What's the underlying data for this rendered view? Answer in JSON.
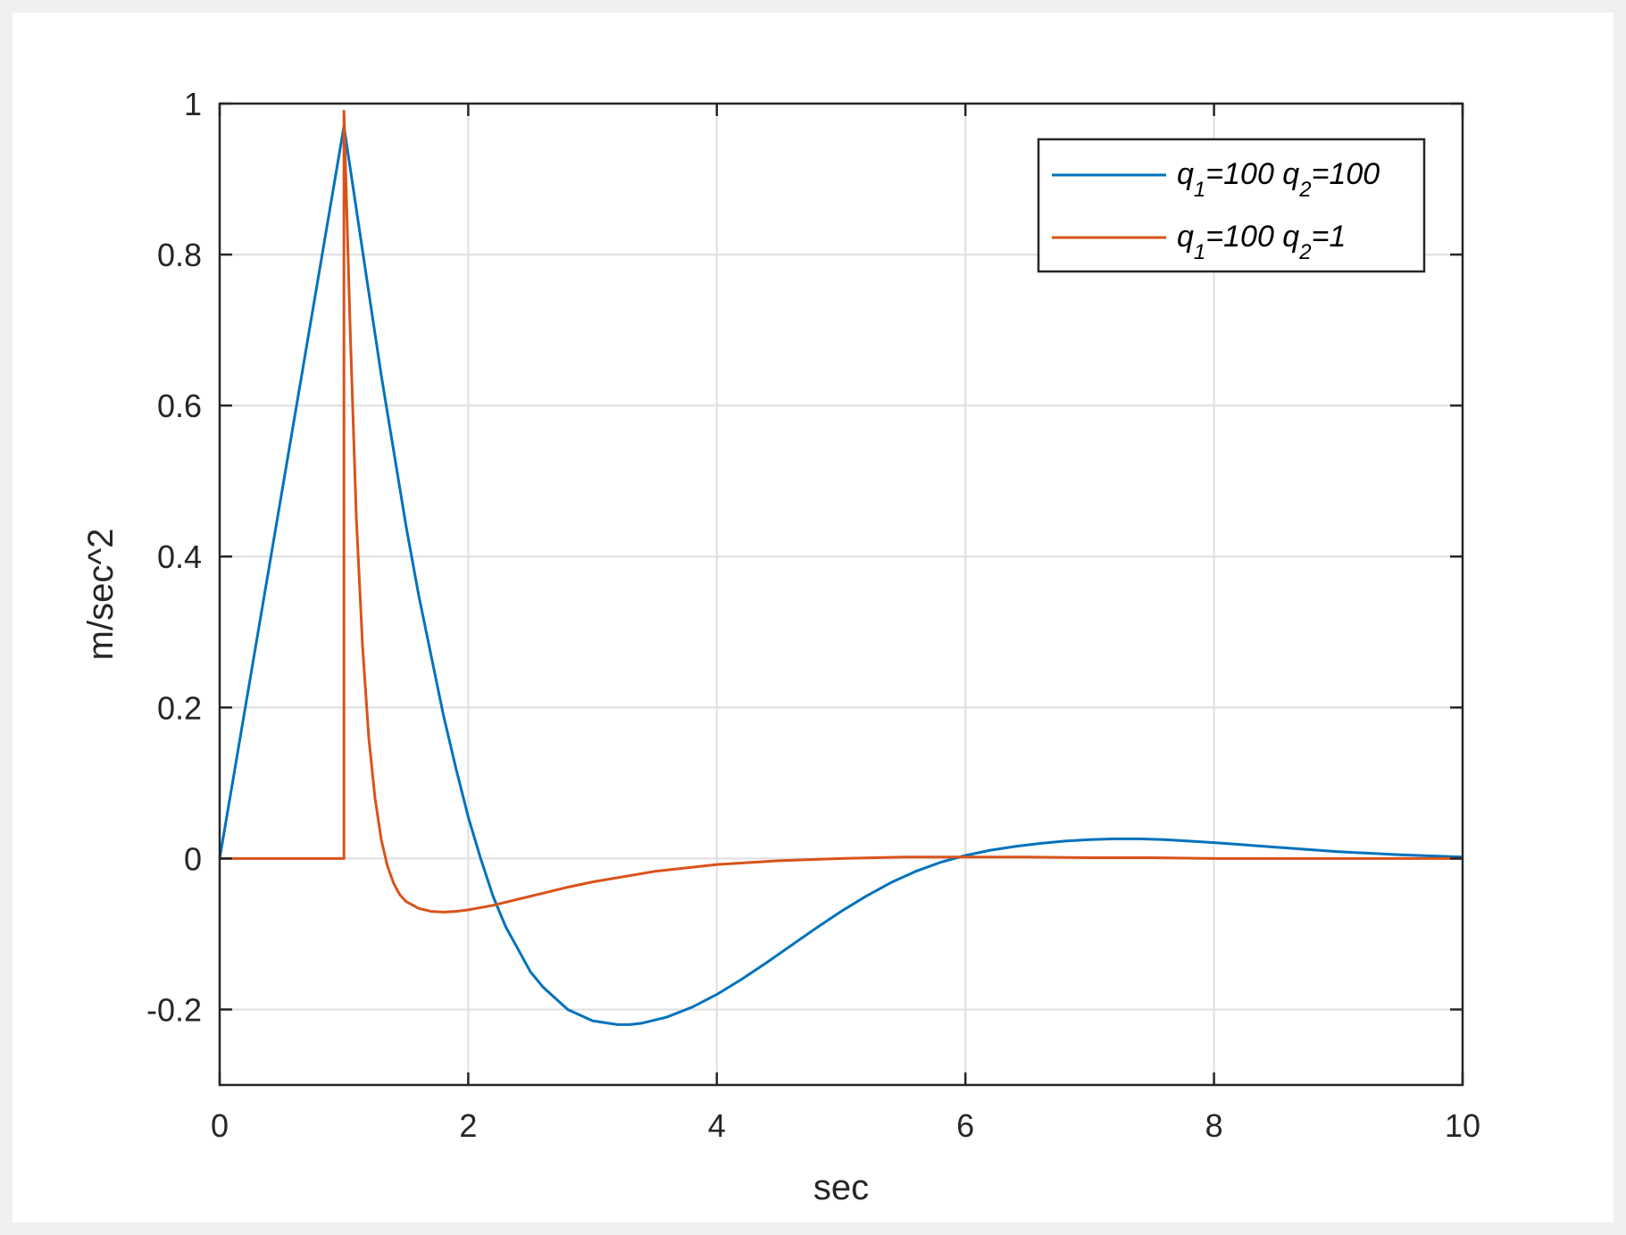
{
  "chart_data": {
    "type": "line",
    "xlabel": "sec",
    "ylabel": "m/sec^2",
    "xlim": [
      0,
      10
    ],
    "ylim": [
      -0.3,
      1
    ],
    "xticks": [
      0,
      2,
      4,
      6,
      8,
      10
    ],
    "yticks": [
      -0.2,
      0,
      0.2,
      0.4,
      0.6,
      0.8,
      1
    ],
    "xtick_labels": [
      "0",
      "2",
      "4",
      "6",
      "8",
      "10"
    ],
    "ytick_labels": [
      "-0.2",
      "0",
      "0.2",
      "0.4",
      "0.6",
      "0.8",
      "1"
    ],
    "grid": true,
    "legend_position": "top-right",
    "series": [
      {
        "name": "q1=100 q2=100",
        "label": {
          "q": "q",
          "s1": "1",
          "mid": "=100 q",
          "s2": "2",
          "end": "=100"
        },
        "color": "#0072BD",
        "x": [
          0,
          1,
          1.1,
          1.2,
          1.3,
          1.4,
          1.5,
          1.6,
          1.7,
          1.8,
          1.9,
          2.0,
          2.1,
          2.2,
          2.3,
          2.4,
          2.5,
          2.6,
          2.8,
          3.0,
          3.2,
          3.3,
          3.4,
          3.6,
          3.8,
          4.0,
          4.2,
          4.4,
          4.6,
          4.8,
          5.0,
          5.2,
          5.4,
          5.6,
          5.8,
          6.0,
          6.2,
          6.4,
          6.6,
          6.8,
          7.0,
          7.2,
          7.4,
          7.6,
          7.8,
          8.0,
          8.5,
          9.0,
          9.5,
          10.0
        ],
        "y": [
          0,
          0.97,
          0.86,
          0.75,
          0.64,
          0.54,
          0.44,
          0.35,
          0.27,
          0.19,
          0.12,
          0.055,
          0.0,
          -0.05,
          -0.09,
          -0.12,
          -0.15,
          -0.17,
          -0.2,
          -0.215,
          -0.22,
          -0.22,
          -0.218,
          -0.21,
          -0.197,
          -0.18,
          -0.16,
          -0.138,
          -0.115,
          -0.092,
          -0.07,
          -0.05,
          -0.032,
          -0.017,
          -0.005,
          0.004,
          0.011,
          0.016,
          0.02,
          0.023,
          0.025,
          0.026,
          0.026,
          0.025,
          0.023,
          0.021,
          0.015,
          0.009,
          0.005,
          0.002
        ]
      },
      {
        "name": "q1=100 q2=1",
        "label": {
          "q": "q",
          "s1": "1",
          "mid": "=100 q",
          "s2": "2",
          "end": "=1"
        },
        "color": "#D95319",
        "x": [
          0,
          1.0,
          1.0,
          1.05,
          1.1,
          1.15,
          1.2,
          1.25,
          1.3,
          1.35,
          1.4,
          1.45,
          1.5,
          1.6,
          1.7,
          1.8,
          1.9,
          2.0,
          2.2,
          2.4,
          2.6,
          2.8,
          3.0,
          3.5,
          4.0,
          4.5,
          5.0,
          5.5,
          6.0,
          6.5,
          7.0,
          7.5,
          8.0,
          9.0,
          10.0
        ],
        "y": [
          0,
          0,
          0.99,
          0.7,
          0.45,
          0.28,
          0.16,
          0.08,
          0.025,
          -0.01,
          -0.033,
          -0.048,
          -0.057,
          -0.066,
          -0.07,
          -0.071,
          -0.07,
          -0.068,
          -0.062,
          -0.054,
          -0.046,
          -0.038,
          -0.031,
          -0.017,
          -0.008,
          -0.003,
          0.0,
          0.002,
          0.002,
          0.002,
          0.001,
          0.001,
          0.0,
          0.0,
          0.0
        ]
      }
    ]
  }
}
